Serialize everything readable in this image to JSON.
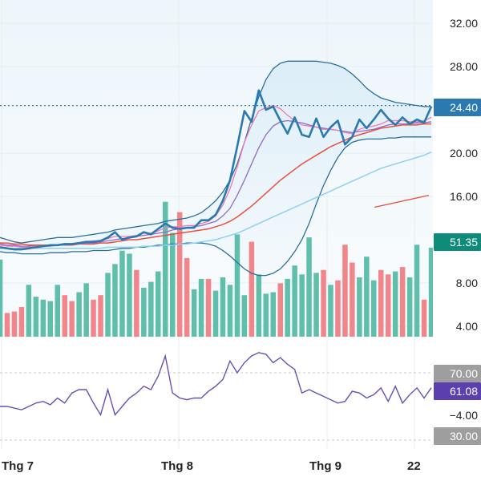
{
  "colors": {
    "price": "#2a79b0",
    "ma_pink": "#f07ab4",
    "ma_purple": "#8f6bc4",
    "ma_red": "#e8503f",
    "ma_lightblue": "#8fd0ef",
    "band": "#2a6f9c",
    "vol_up": "#5fbfaa",
    "vol_down": "#f0868a",
    "rsi": "#6a4fb3",
    "badge_price": "#2a79b0",
    "badge_vol": "#0e8c79",
    "badge_rsi": "#5a3fae",
    "badge_gray": "#9e9e9e"
  },
  "axis": {
    "price_ticks": [
      "32.00",
      "28.00",
      "20.00",
      "16.00",
      "8.00",
      "4.00"
    ],
    "rsi_ticks": [
      "−4.00"
    ],
    "x_labels": [
      "Thg 7",
      "Thg 8",
      "Thg 9",
      "22"
    ]
  },
  "badges": {
    "price": "24.40",
    "volume": "51.35",
    "rsi_upper": "70.00",
    "rsi_value": "61.08",
    "rsi_lower": "30.00"
  },
  "chart_data": {
    "type": "line",
    "title": "",
    "price_axis": {
      "ticks": [
        4,
        8,
        16,
        20,
        28,
        32
      ]
    },
    "price_series": {
      "values": [
        11.3,
        11.2,
        11.1,
        11.1,
        11.2,
        11.3,
        11.4,
        11.5,
        11.5,
        11.6,
        11.6,
        11.7,
        11.8,
        11.8,
        11.9,
        12.2,
        12.7,
        12.0,
        12.2,
        12.3,
        12.7,
        12.5,
        13.0,
        13.5,
        13.1,
        13.0,
        13.1,
        13.1,
        13.8,
        13.8,
        14.3,
        15.6,
        17.5,
        20.6,
        23.9,
        22.9,
        25.8,
        24.0,
        24.3,
        23.0,
        21.8,
        23.3,
        21.7,
        21.5,
        23.2,
        21.5,
        22.4,
        23.0,
        20.8,
        21.5,
        23.1,
        22.3,
        23.1,
        24.0,
        23.2,
        22.6,
        23.3,
        22.7,
        23.1,
        22.8,
        24.3
      ],
      "last": 24.4
    },
    "ma_series": [
      {
        "key": "pink",
        "values": [
          11.5,
          11.4,
          11.4,
          11.3,
          11.3,
          11.4,
          11.4,
          11.5,
          11.5,
          11.6,
          11.6,
          11.7,
          11.8,
          11.9,
          11.9,
          12.1,
          12.3,
          12.3,
          12.3,
          12.4,
          12.6,
          12.6,
          12.8,
          13.1,
          13.2,
          13.2,
          13.3,
          13.3,
          13.5,
          13.7,
          14.2,
          15.2,
          16.7,
          18.7,
          21.0,
          22.6,
          23.9,
          24.2,
          24.4,
          24.1,
          23.5,
          23.0,
          22.6,
          22.5,
          22.4,
          22.2,
          22.2,
          22.1,
          21.9,
          21.8,
          22.2,
          22.4,
          22.5,
          22.7,
          23.0,
          23.0,
          23.0,
          22.9,
          22.9,
          23.0,
          23.3
        ]
      },
      {
        "key": "purple",
        "values": [
          11.6,
          11.5,
          11.5,
          11.4,
          11.4,
          11.4,
          11.4,
          11.4,
          11.5,
          11.5,
          11.6,
          11.6,
          11.7,
          11.7,
          11.8,
          11.9,
          12.0,
          12.1,
          12.2,
          12.3,
          12.4,
          12.5,
          12.6,
          12.7,
          12.9,
          13.0,
          13.1,
          13.2,
          13.3,
          13.5,
          13.7,
          14.2,
          14.9,
          16.1,
          17.5,
          19.0,
          20.5,
          21.7,
          22.5,
          22.9,
          23.0,
          22.9,
          22.8,
          22.6,
          22.4,
          22.3,
          22.2,
          22.1,
          22.0,
          21.9,
          22.0,
          22.1,
          22.2,
          22.4,
          22.6,
          22.7,
          22.7,
          22.7,
          22.8,
          22.8,
          22.9
        ]
      },
      {
        "key": "red",
        "values": [
          11.7,
          11.7,
          11.6,
          11.6,
          11.5,
          11.5,
          11.5,
          11.5,
          11.5,
          11.5,
          11.5,
          11.6,
          11.6,
          11.6,
          11.7,
          11.7,
          11.8,
          11.9,
          12.0,
          12.0,
          12.1,
          12.2,
          12.3,
          12.4,
          12.5,
          12.6,
          12.7,
          12.8,
          12.9,
          13.0,
          13.2,
          13.4,
          13.7,
          14.1,
          14.6,
          15.1,
          15.7,
          16.3,
          16.9,
          17.5,
          18.0,
          18.5,
          19.0,
          19.4,
          19.8,
          20.2,
          20.6,
          20.9,
          21.2,
          21.5,
          21.7,
          21.9,
          22.1,
          22.3,
          22.4,
          22.5,
          22.6,
          22.6,
          22.6,
          22.7,
          22.7
        ]
      },
      {
        "key": "lightblue",
        "values": [
          11.2,
          11.2,
          11.2,
          11.2,
          11.2,
          11.2,
          11.2,
          11.2,
          11.2,
          11.2,
          11.2,
          11.2,
          11.2,
          11.2,
          11.2,
          11.3,
          11.3,
          11.3,
          11.3,
          11.3,
          11.4,
          11.4,
          11.4,
          11.5,
          11.5,
          11.6,
          11.6,
          11.7,
          11.8,
          11.9,
          12.0,
          12.2,
          12.4,
          12.6,
          12.9,
          13.2,
          13.5,
          13.8,
          14.1,
          14.4,
          14.7,
          15.0,
          15.3,
          15.6,
          15.9,
          16.2,
          16.5,
          16.8,
          17.1,
          17.4,
          17.7,
          18.0,
          18.3,
          18.6,
          18.8,
          19.0,
          19.2,
          19.4,
          19.6,
          19.8,
          20.1
        ]
      }
    ],
    "band_upper": [
      12.2,
      12.0,
      11.8,
      11.7,
      11.8,
      11.9,
      12.0,
      12.1,
      12.2,
      12.2,
      12.2,
      12.3,
      12.4,
      12.5,
      12.6,
      12.7,
      12.9,
      13.0,
      13.1,
      13.2,
      13.3,
      13.4,
      13.5,
      13.7,
      13.8,
      13.9,
      14.0,
      14.2,
      14.5,
      15.0,
      15.6,
      16.4,
      17.5,
      19.0,
      21.0,
      23.2,
      25.2,
      26.8,
      27.8,
      28.3,
      28.5,
      28.5,
      28.5,
      28.5,
      28.5,
      28.4,
      28.3,
      28.1,
      27.8,
      27.3,
      26.7,
      26.0,
      25.5,
      25.1,
      24.9,
      24.7,
      24.6,
      24.5,
      24.4,
      24.3,
      24.3
    ],
    "band_lower": [
      10.9,
      10.8,
      10.8,
      10.7,
      10.7,
      10.7,
      10.7,
      10.8,
      10.8,
      10.8,
      10.9,
      10.9,
      10.9,
      11.0,
      11.0,
      11.0,
      11.1,
      11.2,
      11.2,
      11.3,
      11.3,
      11.4,
      11.5,
      11.5,
      11.6,
      11.6,
      11.7,
      11.7,
      11.7,
      11.6,
      11.4,
      11.0,
      10.5,
      9.9,
      9.3,
      8.9,
      8.7,
      8.7,
      8.9,
      9.3,
      10.0,
      10.9,
      12.0,
      13.5,
      15.3,
      17.0,
      18.4,
      19.6,
      20.5,
      21.0,
      21.2,
      21.3,
      21.3,
      21.3,
      21.4,
      21.4,
      21.5,
      21.5,
      21.5,
      21.5,
      21.5
    ],
    "extra_line": {
      "x0": 467,
      "x1": 535,
      "v0": 15.0,
      "v1": 16.1
    },
    "volume": {
      "values": [
        52,
        16,
        17,
        20,
        35,
        27,
        25,
        24,
        35,
        28,
        24,
        30,
        36,
        25,
        28,
        43,
        49,
        58,
        56,
        45,
        33,
        37,
        44,
        91,
        70,
        84,
        53,
        32,
        39,
        39,
        31,
        40,
        35,
        69,
        28,
        64,
        42,
        29,
        30,
        36,
        39,
        48,
        42,
        67,
        43,
        45,
        35,
        38,
        62,
        50,
        40,
        54,
        38,
        45,
        42,
        44,
        47,
        40,
        62,
        25,
        60
      ],
      "up": [
        1,
        0,
        0,
        0,
        1,
        1,
        1,
        1,
        1,
        0,
        0,
        1,
        1,
        0,
        0,
        1,
        1,
        1,
        1,
        0,
        1,
        1,
        1,
        1,
        1,
        0,
        0,
        1,
        1,
        0,
        1,
        1,
        1,
        1,
        1,
        0,
        1,
        1,
        1,
        0,
        1,
        1,
        1,
        1,
        1,
        0,
        1,
        0,
        0,
        0,
        1,
        1,
        1,
        0,
        0,
        1,
        0,
        1,
        1,
        0,
        1
      ]
    },
    "rsi": {
      "values": [
        50,
        50,
        49,
        48,
        50,
        52,
        53,
        51,
        55,
        52,
        58,
        60,
        60,
        52,
        45,
        60,
        45,
        50,
        55,
        58,
        62,
        60,
        68,
        80,
        58,
        55,
        54,
        55,
        55,
        59,
        62,
        66,
        77,
        70,
        76,
        80,
        82,
        81,
        76,
        79,
        75,
        72,
        58,
        60,
        58,
        56,
        54,
        52,
        53,
        59,
        58,
        55,
        57,
        61,
        53,
        62,
        52,
        57,
        61,
        55,
        61.08
      ]
    }
  }
}
